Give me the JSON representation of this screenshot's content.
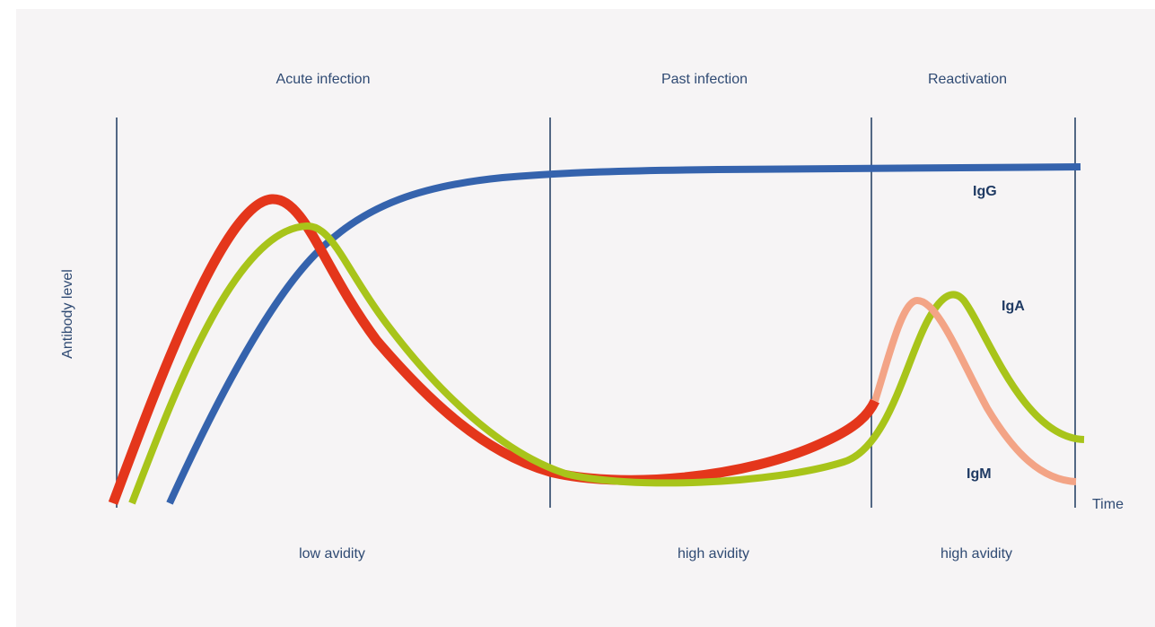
{
  "phases": [
    {
      "title": "Acute infection",
      "avidity": "low avidity"
    },
    {
      "title": "Past infection",
      "avidity": "high avidity"
    },
    {
      "title": "Reactivation",
      "avidity": "high avidity"
    }
  ],
  "axes": {
    "y_label": "Antibody level",
    "x_label": "Time"
  },
  "curves": {
    "igg": {
      "label": "IgG",
      "color": "#3563ad"
    },
    "iga": {
      "label": "IgA",
      "color": "#a8c41a"
    },
    "igm": {
      "label": "IgM",
      "color": "#e4361b",
      "reactivation_color": "#f3a486"
    }
  },
  "colors": {
    "background": "#f6f4f5",
    "text": "#2f4a73",
    "divider": "#2a4468"
  }
}
